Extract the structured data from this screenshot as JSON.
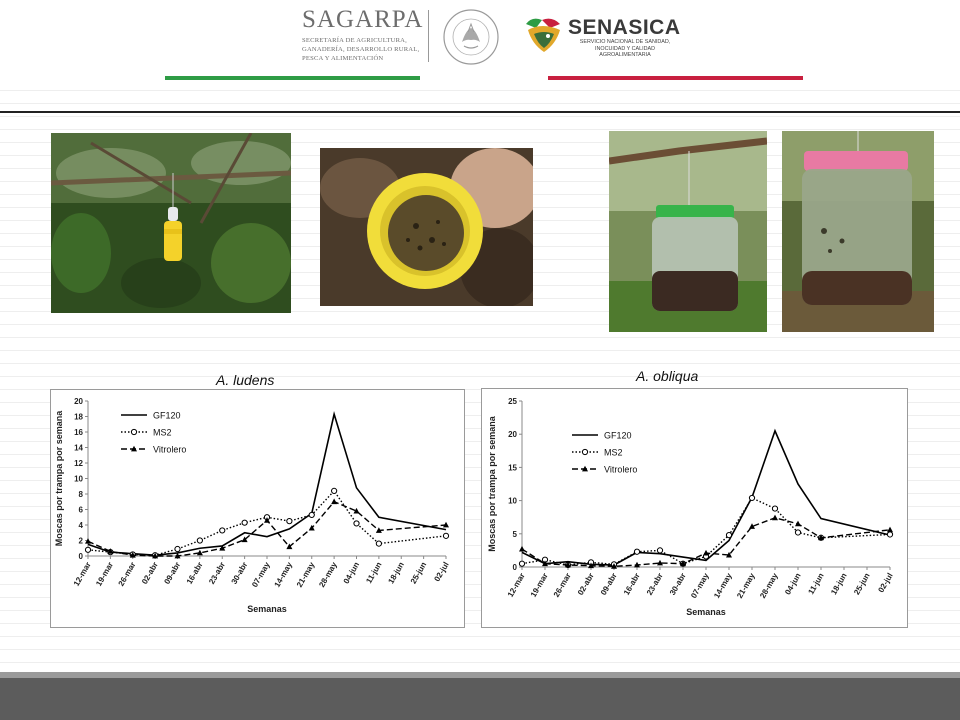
{
  "header": {
    "sagarpa_title": "SAGARPA",
    "sagarpa_subtitle": "SECRETARÍA DE AGRICULTURA, GANADERÍA, DESARROLLO RURAL, PESCA Y ALIMENTACIÓN",
    "seal_text": "ESTADOS UNIDOS MEXICANOS",
    "senasica_title": "SENASICA",
    "senasica_subtitle": "SERVICIO NACIONAL DE SANIDAD, INOCUIDAD Y CALIDAD AGROALIMENTARIA",
    "colors": {
      "green": "#2e9c45",
      "red": "#c8203f"
    }
  },
  "photos": [
    {
      "name": "yellow-trap-in-tree-photo"
    },
    {
      "name": "yellow-trap-interior-photo"
    },
    {
      "name": "green-lid-jar-trap-photo"
    },
    {
      "name": "pink-lid-jar-trap-photo"
    }
  ],
  "chart_data": [
    {
      "type": "line",
      "title": "A. ludens",
      "xlabel": "Semanas",
      "ylabel": "Moscas por trampa por semana",
      "ylim": [
        0,
        20
      ],
      "yticks": [
        0,
        2,
        4,
        6,
        8,
        10,
        12,
        14,
        16,
        18,
        20
      ],
      "grid": false,
      "legend_position": "top-left",
      "categories": [
        "12-mar",
        "19-mar",
        "26-mar",
        "02-abr",
        "09-abr",
        "16-abr",
        "23-abr",
        "30-abr",
        "07-may",
        "14-may",
        "21-may",
        "28-may",
        "04-jun",
        "11-jun",
        "18-jun",
        "25-jun",
        "02-jul"
      ],
      "tick_labels": [
        "12-mar",
        "19-mar",
        "26-mar",
        "02-abr",
        "09-abr",
        "16-abr",
        "23-abr",
        "30-abr",
        "07-may",
        "14-may",
        "21-may",
        "28-may",
        "04-jun",
        "11-jun",
        "18-jun",
        "25-jun",
        "02-jul"
      ],
      "series": [
        {
          "name": "GF120",
          "style": "solid",
          "marker": "none",
          "values": [
            1.5,
            0.5,
            0.3,
            0.1,
            0.4,
            1.0,
            1.3,
            3.0,
            2.5,
            3.5,
            5.5,
            18.3,
            8.8,
            5.0,
            null,
            null,
            3.4
          ]
        },
        {
          "name": "MS2",
          "style": "dotted",
          "marker": "circle",
          "values": [
            0.8,
            0.5,
            0.2,
            0.1,
            0.9,
            2.0,
            3.3,
            4.3,
            5.0,
            4.5,
            5.3,
            8.4,
            4.2,
            1.6,
            null,
            null,
            2.6
          ]
        },
        {
          "name": "Vitrolero",
          "style": "dashed",
          "marker": "triangle",
          "values": [
            1.9,
            0.6,
            0.1,
            0.0,
            0.0,
            0.4,
            1.0,
            2.1,
            4.6,
            1.2,
            3.6,
            7.0,
            5.8,
            3.3,
            null,
            null,
            4.0
          ]
        }
      ]
    },
    {
      "type": "line",
      "title": "A. obliqua",
      "xlabel": "Semanas",
      "ylabel": "Moscas por trampa por semana",
      "ylim": [
        0,
        25
      ],
      "yticks": [
        0,
        5,
        10,
        15,
        20,
        25
      ],
      "grid": false,
      "legend_position": "top-left",
      "categories": [
        "12-mar",
        "19-mar",
        "26-mar",
        "02-abr",
        "09-abr",
        "16-abr",
        "23-abr",
        "30-abr",
        "07-may",
        "14-may",
        "21-may",
        "28-may",
        "04-jun",
        "11-jun",
        "18-jun",
        "25-jun",
        "02-jul"
      ],
      "tick_labels": [
        "12-mar",
        "19-mar",
        "26-mar",
        "02-abr",
        "09-abr",
        "16-abr",
        "23-abr",
        "30-abr",
        "07-may",
        "14-may",
        "21-may",
        "28-may",
        "04-jun",
        "11-jun",
        "18-jun",
        "25-jun",
        "02-jul"
      ],
      "series": [
        {
          "name": "GF120",
          "style": "solid",
          "marker": "none",
          "values": [
            2.2,
            0.5,
            0.8,
            0.4,
            0.3,
            2.2,
            2.0,
            1.5,
            1.0,
            4.0,
            10.5,
            20.5,
            12.5,
            7.3,
            null,
            null,
            4.8
          ]
        },
        {
          "name": "MS2",
          "style": "dotted",
          "marker": "circle",
          "values": [
            0.5,
            1.1,
            0.3,
            0.7,
            0.4,
            2.3,
            2.5,
            0.5,
            1.6,
            4.8,
            10.4,
            8.8,
            5.2,
            4.4,
            null,
            null,
            4.9
          ]
        },
        {
          "name": "Vitrolero",
          "style": "dashed",
          "marker": "triangle",
          "values": [
            2.7,
            0.5,
            0.3,
            0.2,
            0.1,
            0.3,
            0.6,
            0.5,
            2.1,
            1.8,
            6.1,
            7.4,
            6.5,
            4.4,
            null,
            null,
            5.6
          ]
        }
      ]
    }
  ]
}
